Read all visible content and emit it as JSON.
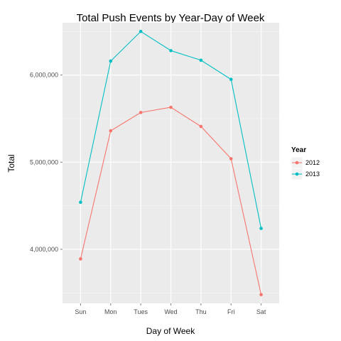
{
  "chart_data": {
    "type": "line",
    "title": "Total Push Events by Year-Day of Week",
    "xlabel": "Day of Week",
    "ylabel": "Total",
    "categories": [
      "Sun",
      "Mon",
      "Tues",
      "Wed",
      "Thu",
      "Fri",
      "Sat"
    ],
    "series": [
      {
        "name": "2012",
        "color": "#F8766D",
        "values": [
          3890000,
          5360000,
          5570000,
          5630000,
          5410000,
          5040000,
          3480000
        ]
      },
      {
        "name": "2013",
        "color": "#00BFC4",
        "values": [
          4540000,
          6160000,
          6500000,
          6280000,
          6170000,
          5950000,
          4240000
        ]
      }
    ],
    "ylim": [
      3380000,
      6600000
    ],
    "yticks": [
      4000000,
      5000000,
      6000000
    ],
    "ytick_labels": [
      "4,000,000",
      "5,000,000",
      "6,000,000"
    ],
    "legend": {
      "title": "Year",
      "position": "right"
    },
    "grid": true,
    "panel_color": "#EBEBEB"
  }
}
